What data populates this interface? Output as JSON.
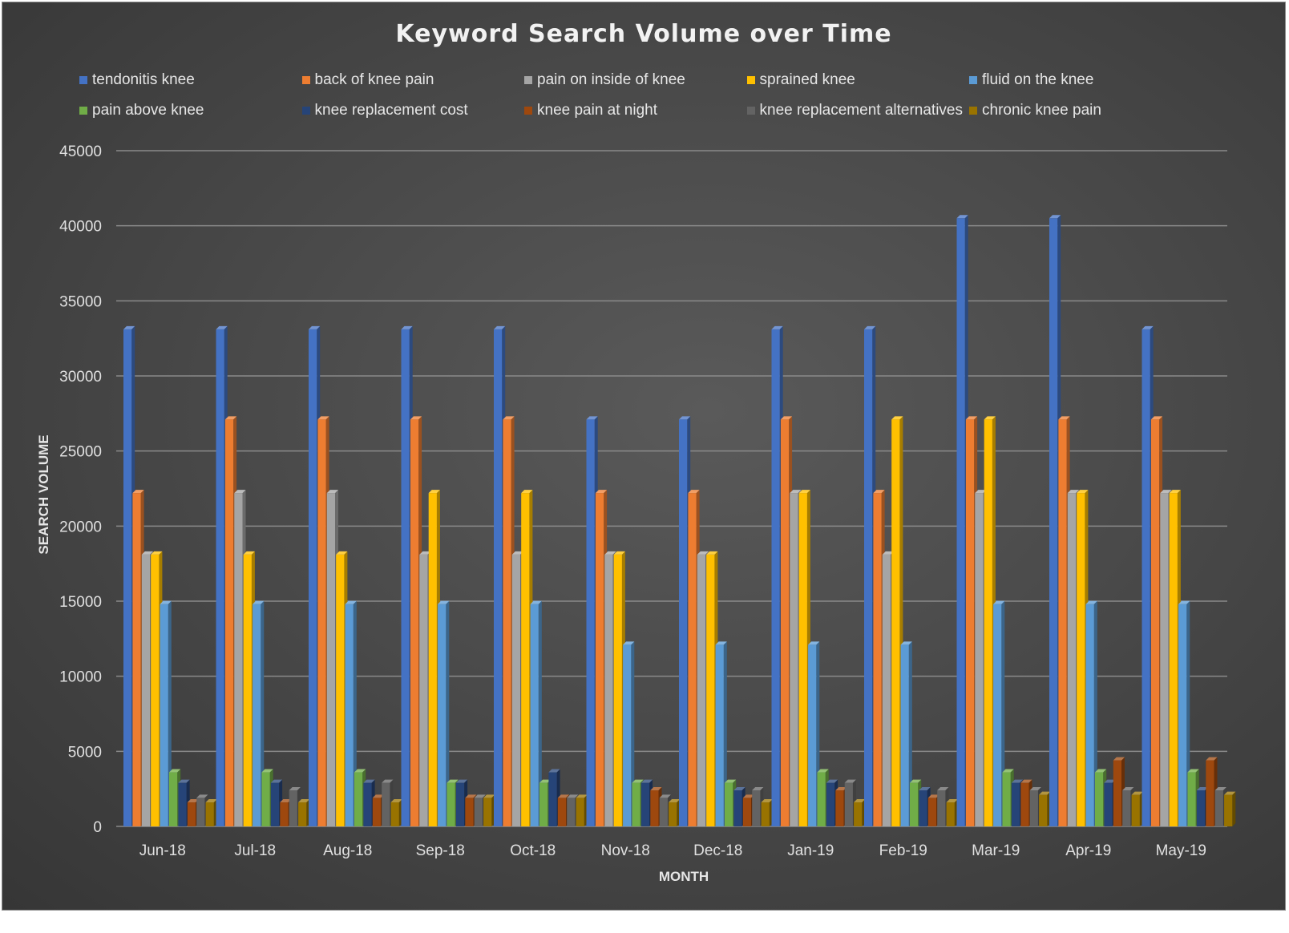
{
  "chart_data": {
    "type": "bar",
    "title": "Keyword Search Volume over Time",
    "xlabel": "MONTH",
    "ylabel": "SEARCH VOLUME",
    "ylim": [
      0,
      45000
    ],
    "yticks": [
      0,
      5000,
      10000,
      15000,
      20000,
      25000,
      30000,
      35000,
      40000,
      45000
    ],
    "grid": true,
    "legend_position": "top",
    "categories": [
      "Jun-18",
      "Jul-18",
      "Aug-18",
      "Sep-18",
      "Oct-18",
      "Nov-18",
      "Dec-18",
      "Jan-19",
      "Feb-19",
      "Mar-19",
      "Apr-19",
      "May-19"
    ],
    "series": [
      {
        "name": "tendonitis knee",
        "color": "#4472c4",
        "values": [
          33100,
          33100,
          33100,
          33100,
          33100,
          27100,
          27100,
          33100,
          33100,
          40500,
          40500,
          33100
        ]
      },
      {
        "name": "back of knee pain",
        "color": "#ed7d31",
        "values": [
          22200,
          27100,
          27100,
          27100,
          27100,
          22200,
          22200,
          27100,
          22200,
          27100,
          27100,
          27100
        ]
      },
      {
        "name": "pain on inside of knee",
        "color": "#a5a5a5",
        "values": [
          18100,
          22200,
          22200,
          18100,
          18100,
          18100,
          18100,
          22200,
          18100,
          22200,
          22200,
          22200
        ]
      },
      {
        "name": "sprained knee",
        "color": "#ffc000",
        "values": [
          18100,
          18100,
          18100,
          22200,
          22200,
          18100,
          18100,
          22200,
          27100,
          27100,
          22200,
          22200
        ]
      },
      {
        "name": "fluid on the knee",
        "color": "#5b9bd5",
        "values": [
          14800,
          14800,
          14800,
          14800,
          14800,
          12100,
          12100,
          12100,
          12100,
          14800,
          14800,
          14800
        ]
      },
      {
        "name": "pain above knee",
        "color": "#70ad47",
        "values": [
          3600,
          3600,
          3600,
          2900,
          2900,
          2900,
          2900,
          3600,
          2900,
          3600,
          3600,
          3600
        ]
      },
      {
        "name": "knee replacement cost",
        "color": "#264478",
        "values": [
          2900,
          2900,
          2900,
          2900,
          3600,
          2900,
          2400,
          2900,
          2400,
          2900,
          2900,
          2400
        ]
      },
      {
        "name": "knee pain at night",
        "color": "#9e480e",
        "values": [
          1600,
          1600,
          1900,
          1900,
          1900,
          2400,
          1900,
          2400,
          1900,
          2900,
          4400,
          4400
        ]
      },
      {
        "name": "knee replacement alternatives",
        "color": "#636363",
        "values": [
          1900,
          2400,
          2900,
          1900,
          1900,
          1900,
          2400,
          2900,
          2400,
          2400,
          2400,
          2400
        ]
      },
      {
        "name": "chronic knee pain",
        "color": "#997300",
        "values": [
          1600,
          1600,
          1600,
          1900,
          1900,
          1600,
          1600,
          1600,
          1600,
          2100,
          2100,
          2100
        ]
      }
    ]
  }
}
